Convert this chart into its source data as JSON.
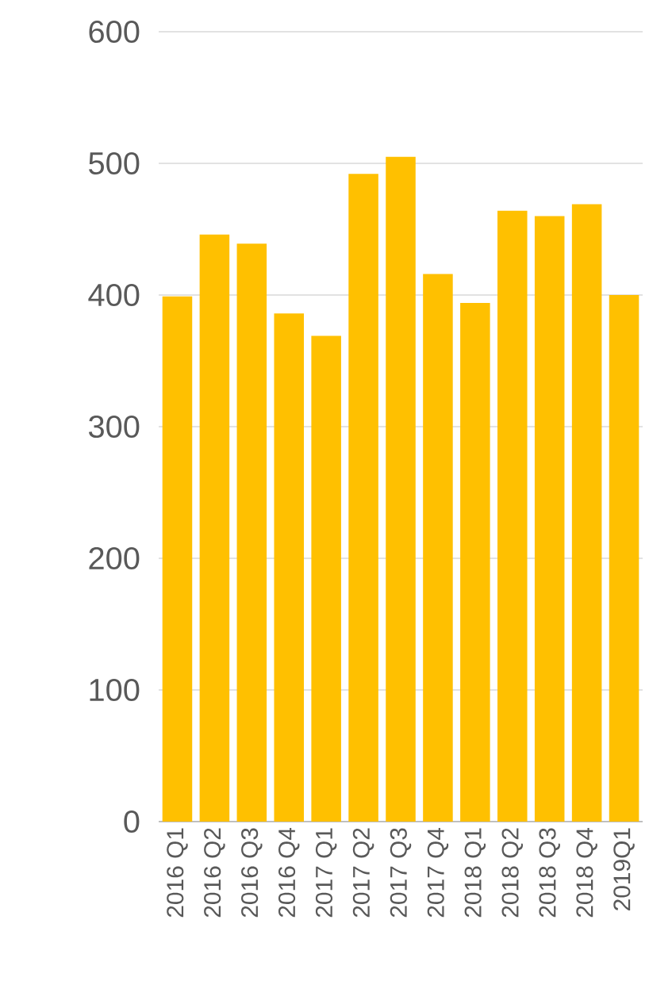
{
  "chart_data": {
    "type": "bar",
    "categories": [
      "2016 Q1",
      "2016 Q2",
      "2016 Q3",
      "2016 Q4",
      "2017 Q1",
      "2017 Q2",
      "2017 Q3",
      "2017 Q4",
      "2018 Q1",
      "2018 Q2",
      "2018 Q3",
      "2018 Q4",
      "2019Q1"
    ],
    "values": [
      399,
      446,
      439,
      386,
      369,
      492,
      505,
      416,
      394,
      464,
      460,
      469,
      400
    ],
    "color": "#ffc000",
    "ylim": [
      0,
      600
    ],
    "yticks": [
      0,
      100,
      200,
      300,
      400,
      500,
      600
    ],
    "grid": "y"
  }
}
